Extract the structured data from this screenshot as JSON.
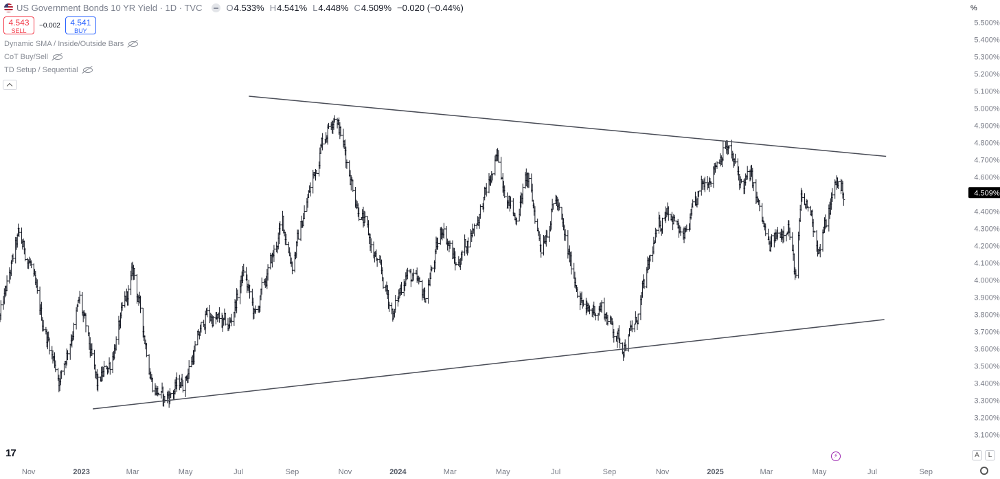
{
  "header": {
    "symbol_title": "US Government Bonds 10 YR Yield · 1D · TVC",
    "ohlc": [
      {
        "key": "O",
        "value": "4.533%"
      },
      {
        "key": "H",
        "value": "4.541%"
      },
      {
        "key": "L",
        "value": "4.448%"
      },
      {
        "key": "C",
        "value": "4.509%"
      }
    ],
    "change": "−0.020 (−0.44%)"
  },
  "trade": {
    "sell_price": "4.543",
    "sell_label": "SELL",
    "spread": "−0.002",
    "buy_price": "4.541",
    "buy_label": "BUY"
  },
  "indicators": [
    {
      "label": "Dynamic SMA / Inside/Outside Bars"
    },
    {
      "label": "CoT Buy/Sell"
    },
    {
      "label": "TD Setup / Sequential"
    }
  ],
  "unit_label": "%",
  "badge_labels": [
    "A",
    "L"
  ],
  "colors": {
    "price_bar": "#131722",
    "trend_line": "#4a4d57",
    "price_badge_bg": "#000000",
    "axis_text": "#787b86",
    "sell": "#f23645",
    "buy": "#2962ff"
  },
  "chart_data": {
    "type": "ohlc",
    "title": "US Government Bonds 10 YR Yield",
    "ylabel": "%",
    "ylim": [
      3.05,
      5.55
    ],
    "y_ticks": [
      "5.500%",
      "5.400%",
      "5.300%",
      "5.200%",
      "5.100%",
      "5.000%",
      "4.900%",
      "4.800%",
      "4.700%",
      "4.600%",
      "4.500%",
      "4.400%",
      "4.300%",
      "4.200%",
      "4.100%",
      "4.000%",
      "3.900%",
      "3.800%",
      "3.700%",
      "3.600%",
      "3.500%",
      "3.400%",
      "3.300%",
      "3.200%",
      "3.100%"
    ],
    "y_tick_values": [
      5.5,
      5.4,
      5.3,
      5.2,
      5.1,
      5.0,
      4.9,
      4.8,
      4.7,
      4.6,
      4.5,
      4.4,
      4.3,
      4.2,
      4.1,
      4.0,
      3.9,
      3.8,
      3.7,
      3.6,
      3.5,
      3.4,
      3.3,
      3.2,
      3.1
    ],
    "x_ticks": [
      {
        "label": "Nov",
        "date": "2022-11-01"
      },
      {
        "label": "2023",
        "date": "2023-01-01"
      },
      {
        "label": "Mar",
        "date": "2023-03-01"
      },
      {
        "label": "May",
        "date": "2023-05-01"
      },
      {
        "label": "Jul",
        "date": "2023-07-01"
      },
      {
        "label": "Sep",
        "date": "2023-09-01"
      },
      {
        "label": "Nov",
        "date": "2023-11-01"
      },
      {
        "label": "2024",
        "date": "2024-01-01"
      },
      {
        "label": "Mar",
        "date": "2024-03-01"
      },
      {
        "label": "May",
        "date": "2024-05-01"
      },
      {
        "label": "Jul",
        "date": "2024-07-01"
      },
      {
        "label": "Sep",
        "date": "2024-09-01"
      },
      {
        "label": "Nov",
        "date": "2024-11-01"
      },
      {
        "label": "2025",
        "date": "2025-01-01"
      },
      {
        "label": "Mar",
        "date": "2025-03-01"
      },
      {
        "label": "May",
        "date": "2025-05-01"
      },
      {
        "label": "Jul",
        "date": "2025-07-01"
      },
      {
        "label": "Sep",
        "date": "2025-09-01"
      }
    ],
    "xlim": [
      "2022-09-29",
      "2025-10-12"
    ],
    "series": [
      {
        "anchors": [
          {
            "date": "2022-09-29",
            "value": 3.78
          },
          {
            "date": "2022-10-20",
            "value": 4.25
          },
          {
            "date": "2022-11-03",
            "value": 4.1
          },
          {
            "date": "2022-11-12",
            "value": 3.85
          },
          {
            "date": "2022-12-07",
            "value": 3.42
          },
          {
            "date": "2022-12-30",
            "value": 3.88
          },
          {
            "date": "2023-01-19",
            "value": 3.38
          },
          {
            "date": "2023-02-03",
            "value": 3.52
          },
          {
            "date": "2023-03-02",
            "value": 4.05
          },
          {
            "date": "2023-03-24",
            "value": 3.4
          },
          {
            "date": "2023-04-06",
            "value": 3.3
          },
          {
            "date": "2023-05-01",
            "value": 3.43
          },
          {
            "date": "2023-05-25",
            "value": 3.8
          },
          {
            "date": "2023-06-20",
            "value": 3.72
          },
          {
            "date": "2023-07-07",
            "value": 4.05
          },
          {
            "date": "2023-07-20",
            "value": 3.78
          },
          {
            "date": "2023-08-21",
            "value": 4.33
          },
          {
            "date": "2023-09-01",
            "value": 4.1
          },
          {
            "date": "2023-10-05",
            "value": 4.8
          },
          {
            "date": "2023-10-20",
            "value": 4.99
          },
          {
            "date": "2023-11-15",
            "value": 4.45
          },
          {
            "date": "2023-12-01",
            "value": 4.2
          },
          {
            "date": "2023-12-27",
            "value": 3.8
          },
          {
            "date": "2024-01-10",
            "value": 4.05
          },
          {
            "date": "2024-02-01",
            "value": 3.9
          },
          {
            "date": "2024-02-22",
            "value": 4.32
          },
          {
            "date": "2024-03-08",
            "value": 4.08
          },
          {
            "date": "2024-04-01",
            "value": 4.35
          },
          {
            "date": "2024-04-25",
            "value": 4.7
          },
          {
            "date": "2024-05-15",
            "value": 4.35
          },
          {
            "date": "2024-05-29",
            "value": 4.6
          },
          {
            "date": "2024-06-14",
            "value": 4.2
          },
          {
            "date": "2024-07-01",
            "value": 4.48
          },
          {
            "date": "2024-07-15",
            "value": 4.15
          },
          {
            "date": "2024-08-05",
            "value": 3.8
          },
          {
            "date": "2024-08-22",
            "value": 3.85
          },
          {
            "date": "2024-09-16",
            "value": 3.62
          },
          {
            "date": "2024-10-01",
            "value": 3.74
          },
          {
            "date": "2024-10-22",
            "value": 4.2
          },
          {
            "date": "2024-11-07",
            "value": 4.45
          },
          {
            "date": "2024-11-25",
            "value": 4.22
          },
          {
            "date": "2024-12-18",
            "value": 4.55
          },
          {
            "date": "2025-01-13",
            "value": 4.79
          },
          {
            "date": "2025-02-01",
            "value": 4.55
          },
          {
            "date": "2025-02-11",
            "value": 4.6
          },
          {
            "date": "2025-03-04",
            "value": 4.18
          },
          {
            "date": "2025-03-26",
            "value": 4.35
          },
          {
            "date": "2025-04-04",
            "value": 3.99
          },
          {
            "date": "2025-04-10",
            "value": 4.45
          },
          {
            "date": "2025-04-21",
            "value": 4.4
          },
          {
            "date": "2025-05-01",
            "value": 4.17
          },
          {
            "date": "2025-05-21",
            "value": 4.58
          },
          {
            "date": "2025-05-29",
            "value": 4.509
          }
        ],
        "last_value_label": "4.509%"
      }
    ],
    "trend_lines": [
      {
        "name": "upper",
        "start": {
          "date": "2023-07-13",
          "value": 5.07
        },
        "end": {
          "date": "2025-07-17",
          "value": 4.72
        }
      },
      {
        "name": "lower",
        "start": {
          "date": "2023-01-14",
          "value": 3.25
        },
        "end": {
          "date": "2025-07-15",
          "value": 3.77
        }
      }
    ]
  }
}
